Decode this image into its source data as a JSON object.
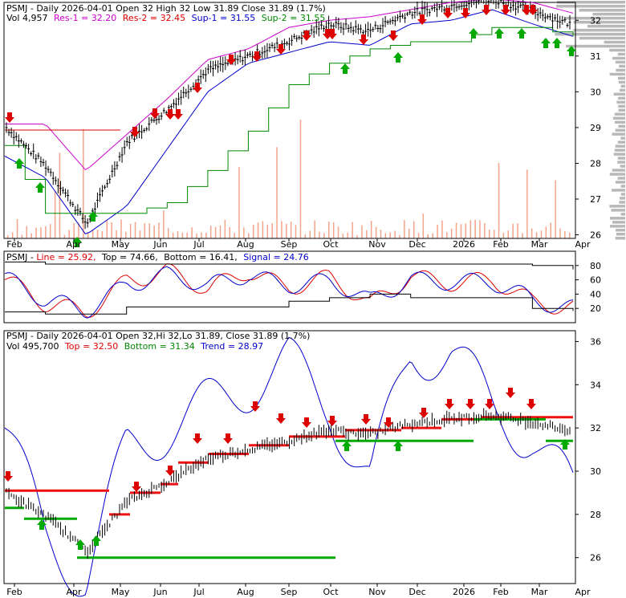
{
  "colors": {
    "black": "#000000",
    "red": "#dd0000",
    "blue": "#0000cc",
    "green": "#008800",
    "magenta": "#cc00cc",
    "salmon": "#f4a488",
    "grey": "#b8b8b8",
    "redline": "#ee1111",
    "greenline": "#00aa00"
  },
  "panel1": {
    "title": "PSMJ - Daily 2026-04-01 Open 32  High 32  Low 31.89  Close 31.89 (1.7%)",
    "vol": "Vol 4,957",
    "res1": "Res-1 = 32.20",
    "res2": "Res-2 = 32.45",
    "sup1": "Sup-1 = 31.55",
    "sup2": "Sup-2 = 31.55",
    "yticks": [
      "32",
      "31",
      "30",
      "29",
      "28",
      "27",
      "26"
    ]
  },
  "panel2": {
    "title": "PSMJ - Line = 25.92, Top = 74.66, Bottom = 16.41, Signal = 24.76",
    "prefix": "PSMJ - ",
    "line": "Line = 25.92,",
    "top": "Top = 74.66,",
    "bottom": "Bottom = 16.41,",
    "signal": "Signal = 24.76",
    "yticks": [
      "80",
      "60",
      "40",
      "20"
    ]
  },
  "panel3": {
    "title": "PSMJ - Daily 2026-04-01 Open 32,Hi 32,Lo 31.89, Close 31.89 (1.7%)",
    "vol": "Vol 495,700",
    "top": "Top = 32.50",
    "bottom": "Bottom = 31.34",
    "trend": "Trend = 28.97",
    "yticks": [
      "36",
      "34",
      "32",
      "30",
      "28",
      "26"
    ]
  },
  "xaxis": [
    "Feb",
    "Apr",
    "May",
    "Jun",
    "Jul",
    "Aug",
    "Sep",
    "Oct",
    "Nov",
    "Dec",
    "2026",
    "Feb",
    "Mar",
    "Apr"
  ],
  "chart_data": [
    {
      "type": "line",
      "title": "PSMJ - Daily 2026-04-01",
      "categories": [
        "Feb",
        "Mar",
        "Apr",
        "May",
        "Jun",
        "Jul",
        "Aug",
        "Sep",
        "Oct",
        "Nov",
        "Dec",
        "Jan",
        "Feb",
        "Mar",
        "Apr"
      ],
      "series": [
        {
          "name": "Close",
          "values": [
            29.0,
            27.9,
            26.3,
            28.6,
            29.5,
            30.6,
            31.0,
            31.4,
            31.9,
            31.7,
            32.2,
            32.4,
            32.6,
            32.3,
            31.9
          ]
        },
        {
          "name": "Res-1",
          "values": [
            29.1,
            29.1,
            27.8,
            28.8,
            29.8,
            30.9,
            31.2,
            31.8,
            32.0,
            32.1,
            32.3,
            32.5,
            32.6,
            32.5,
            32.2
          ]
        },
        {
          "name": "Sup-1",
          "values": [
            28.2,
            27.6,
            26.0,
            26.8,
            28.4,
            30.0,
            30.8,
            31.1,
            31.4,
            31.3,
            31.9,
            32.0,
            32.3,
            31.9,
            31.55
          ]
        },
        {
          "name": "Sup-2",
          "values": [
            28.5,
            26.6,
            26.6,
            26.6,
            26.9,
            27.8,
            28.9,
            30.2,
            30.8,
            31.2,
            31.4,
            31.4,
            31.8,
            31.8,
            31.55
          ]
        }
      ],
      "ylim": [
        25.9,
        32.5
      ]
    },
    {
      "type": "line",
      "categories": [
        "Feb",
        "Mar",
        "Apr",
        "May",
        "Jun",
        "Jul",
        "Aug",
        "Sep",
        "Oct",
        "Nov",
        "Dec",
        "Jan",
        "Feb",
        "Mar",
        "Apr"
      ],
      "series": [
        {
          "name": "Line",
          "values": [
            60,
            20,
            15,
            65,
            70,
            40,
            75,
            55,
            60,
            20,
            70,
            60,
            55,
            25,
            25.92
          ]
        },
        {
          "name": "Signal",
          "values": [
            62,
            25,
            18,
            60,
            65,
            45,
            70,
            58,
            55,
            25,
            65,
            62,
            52,
            28,
            24.76
          ]
        },
        {
          "name": "Top",
          "values": [
            85,
            82,
            82,
            82,
            82,
            82,
            82,
            82,
            82,
            82,
            82,
            82,
            82,
            80,
            74.66
          ]
        },
        {
          "name": "Bottom",
          "values": [
            15,
            12,
            12,
            22,
            22,
            22,
            22,
            30,
            35,
            40,
            35,
            35,
            35,
            20,
            16.41
          ]
        }
      ],
      "ylim": [
        0,
        100
      ]
    },
    {
      "type": "line",
      "title": "PSMJ - Daily 2026-04-01",
      "categories": [
        "Feb",
        "Mar",
        "Apr",
        "May",
        "Jun",
        "Jul",
        "Aug",
        "Sep",
        "Oct",
        "Nov",
        "Dec",
        "Jan",
        "Feb",
        "Mar",
        "Apr"
      ],
      "series": [
        {
          "name": "Close",
          "values": [
            29.0,
            27.9,
            26.3,
            28.6,
            29.5,
            30.6,
            31.0,
            31.4,
            31.9,
            31.7,
            32.2,
            32.4,
            32.6,
            32.3,
            31.89
          ]
        },
        {
          "name": "Trend",
          "values": [
            32.0,
            27.0,
            25.0,
            31.0,
            32.0,
            33.0,
            34.0,
            35.0,
            33.0,
            29.5,
            35.5,
            35.5,
            33.0,
            31.5,
            28.97
          ]
        }
      ],
      "ylim": [
        24.8,
        36.5
      ]
    }
  ]
}
